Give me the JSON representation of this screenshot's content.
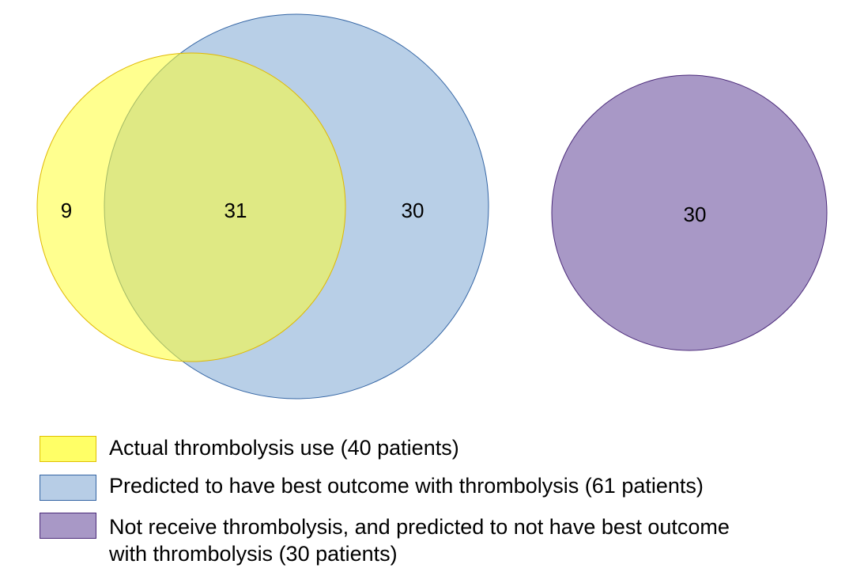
{
  "venn": {
    "sets": [
      {
        "id": "actual",
        "color": "#ffff66",
        "stroke": "#e0c000"
      },
      {
        "id": "predicted",
        "color": "#a8c4e2",
        "stroke": "#3465a4"
      },
      {
        "id": "not_receive",
        "color": "#a08cc0",
        "stroke": "#4b2a7a"
      }
    ],
    "counts": {
      "actual_only": "9",
      "both": "31",
      "predicted_only": "30",
      "not_receive": "30"
    }
  },
  "legend": [
    {
      "text": "Actual thrombolysis use (40 patients)",
      "color": "#ffff66",
      "border": "#e0c000"
    },
    {
      "text": "Predicted to have best outcome with thrombolysis (61 patients)",
      "color": "#b7cde6",
      "border": "#3465a4"
    },
    {
      "text_line1": "Not receive thrombolysis, and predicted to not have best outcome",
      "text_line2": "with thrombolysis (30 patients)",
      "color": "#a898c6",
      "border": "#4b2a7a"
    }
  ]
}
